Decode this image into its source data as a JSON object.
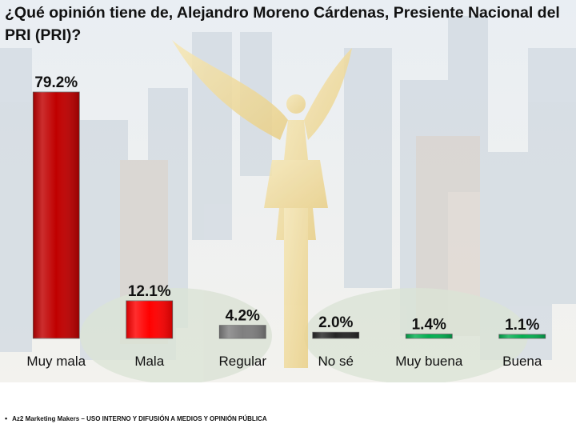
{
  "slide": {
    "title": "¿Qué opinión tiene de, Alejandro Moreno Cárdenas, Presiente Nacional del PRI (PRI)?",
    "footer": "Az2 Marketing Makers – USO INTERNO Y DIFUSIÓN A MEDIOS Y OPINIÓN PÚBLICA",
    "background_image": "angel-de-la-independencia-city-skyline-faded"
  },
  "chart_data": {
    "type": "bar",
    "title": "¿Qué opinión tiene de, Alejandro Moreno Cárdenas, Presiente Nacional del PRI (PRI)?",
    "categories": [
      "Muy mala",
      "Mala",
      "Regular",
      "No sé",
      "Muy buena",
      "Buena"
    ],
    "values": [
      79.2,
      12.1,
      4.2,
      2.0,
      1.4,
      1.1
    ],
    "data_labels": [
      "79.2%",
      "12.1%",
      "4.2%",
      "2.0%",
      "1.4%",
      "1.1%"
    ],
    "colors": [
      "#c00000",
      "#ff0000",
      "#7f7f7f",
      "#262626",
      "#00b050",
      "#00b050"
    ],
    "xlabel": "",
    "ylabel": "",
    "ylim": [
      0,
      80
    ],
    "grid": false,
    "legend": "none"
  }
}
